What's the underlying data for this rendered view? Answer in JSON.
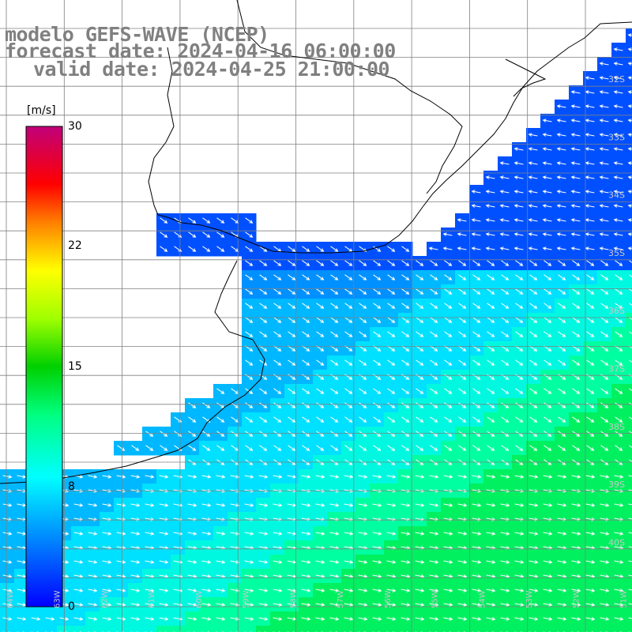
{
  "title": {
    "line1": "modelo GEFS-WAVE (NCEP)",
    "line2": "forecast date: 2024-04-16 06:00:00",
    "line3": "valid date: 2024-04-25 21:00:00"
  },
  "colorbar": {
    "unit": "[m/s]",
    "min": 0,
    "max": 30,
    "ticks": [
      "30",
      "22",
      "15",
      "8",
      "0"
    ],
    "tick_values": [
      30,
      22,
      15,
      8,
      0
    ],
    "colors": [
      "#0000ff",
      "#00a0ff",
      "#00ffff",
      "#00ff80",
      "#00c000",
      "#80ff00",
      "#ffff00",
      "#ffa000",
      "#ff4000",
      "#ff0000",
      "#c00080"
    ]
  },
  "map": {
    "latitude_labels": [
      "32S",
      "33S",
      "34S",
      "35S",
      "36S",
      "37S",
      "38S",
      "39S",
      "40S"
    ],
    "longitude_labels": [
      "64W",
      "63W",
      "62W",
      "61W",
      "60W",
      "59W",
      "58W",
      "57W",
      "56W",
      "55W",
      "54W",
      "53W",
      "52W",
      "51W"
    ],
    "land_color": "#ffffff",
    "grid_color": "#808080"
  }
}
